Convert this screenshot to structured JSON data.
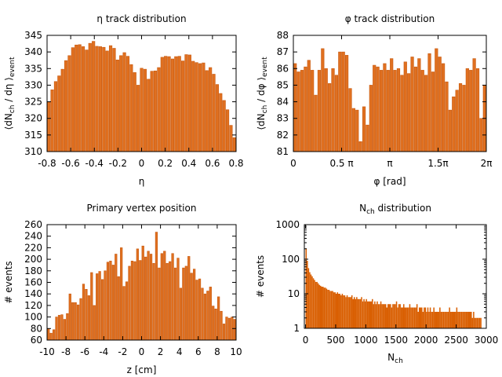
{
  "colors": {
    "bar": "#e07020",
    "bar_edge": "#c85a10",
    "bar_hist": "#d95f02",
    "axis": "#000000"
  },
  "chart_data": [
    {
      "id": "eta",
      "type": "bar",
      "title": "η track distribution",
      "xlabel": "η",
      "ylabel_main": "⟨dN",
      "ylabel_sub1": "ch",
      "ylabel_mid": " / dη ⟩",
      "ylabel_sub2": "event",
      "xlim": [
        -0.8,
        0.8
      ],
      "ylim": [
        310,
        345
      ],
      "xticks": [
        {
          "v": -0.8,
          "label": "-0.8"
        },
        {
          "v": -0.6,
          "label": "-0.6"
        },
        {
          "v": -0.4,
          "label": "-0.4"
        },
        {
          "v": -0.2,
          "label": "-0.2"
        },
        {
          "v": 0,
          "label": "0"
        },
        {
          "v": 0.2,
          "label": "0.2"
        },
        {
          "v": 0.4,
          "label": "0.4"
        },
        {
          "v": 0.6,
          "label": "0.6"
        },
        {
          "v": 0.8,
          "label": "0.8"
        }
      ],
      "yticks": [
        {
          "v": 310,
          "label": "310"
        },
        {
          "v": 315,
          "label": "315"
        },
        {
          "v": 320,
          "label": "320"
        },
        {
          "v": 325,
          "label": "325"
        },
        {
          "v": 330,
          "label": "330"
        },
        {
          "v": 335,
          "label": "335"
        },
        {
          "v": 340,
          "label": "340"
        },
        {
          "v": 345,
          "label": "345"
        }
      ],
      "values": [
        325.0,
        328.6,
        331.1,
        332.8,
        334.8,
        337.4,
        338.9,
        341.3,
        342.1,
        342.2,
        341.6,
        340.6,
        342.6,
        343.2,
        341.7,
        341.6,
        341.4,
        340.3,
        341.9,
        341.1,
        337.6,
        338.9,
        339.8,
        338.7,
        336.2,
        333.8,
        330.0,
        335.1,
        334.8,
        331.8,
        334.2,
        334.3,
        335.3,
        338.4,
        338.7,
        338.6,
        337.9,
        338.6,
        338.7,
        337.3,
        339.2,
        339.1,
        337.2,
        336.8,
        336.5,
        336.7,
        334.4,
        335.3,
        333.3,
        330.2,
        327.5,
        325.4,
        322.6,
        317.9,
        314.2
      ]
    },
    {
      "id": "phi",
      "type": "bar",
      "title": "φ track distribution",
      "xlabel": "φ [rad]",
      "ylabel_main": "⟨dN",
      "ylabel_sub1": "ch",
      "ylabel_mid": " / dφ ⟩",
      "ylabel_sub2": "event",
      "xlim": [
        0,
        6.283185
      ],
      "ylim": [
        81,
        88
      ],
      "xticks": [
        {
          "v": 0,
          "label": "0"
        },
        {
          "v": 1.570796,
          "label": "0.5 π"
        },
        {
          "v": 3.141593,
          "label": "π"
        },
        {
          "v": 4.712389,
          "label": "1.5π"
        },
        {
          "v": 6.283185,
          "label": "2π"
        }
      ],
      "yticks": [
        {
          "v": 81,
          "label": "81"
        },
        {
          "v": 82,
          "label": "82"
        },
        {
          "v": 83,
          "label": "83"
        },
        {
          "v": 84,
          "label": "84"
        },
        {
          "v": 85,
          "label": "85"
        },
        {
          "v": 86,
          "label": "86"
        },
        {
          "v": 87,
          "label": "87"
        },
        {
          "v": 88,
          "label": "88"
        }
      ],
      "values": [
        86.3,
        85.8,
        85.9,
        86.1,
        86.5,
        85.9,
        84.4,
        85.9,
        87.2,
        86.0,
        85.1,
        86.0,
        85.6,
        87.0,
        87.0,
        86.8,
        84.8,
        83.6,
        83.5,
        81.6,
        83.7,
        82.6,
        85.0,
        86.2,
        86.1,
        85.9,
        86.3,
        85.9,
        86.6,
        85.9,
        86.0,
        85.6,
        86.4,
        85.7,
        86.7,
        86.1,
        86.6,
        85.9,
        85.6,
        86.9,
        85.8,
        87.2,
        86.7,
        86.3,
        85.2,
        83.5,
        84.3,
        84.7,
        85.1,
        85.0,
        86.0,
        85.9,
        86.6,
        86.0,
        83.0,
        85.0
      ]
    },
    {
      "id": "vertex",
      "type": "bar",
      "title": "Primary vertex position",
      "xlabel": "z [cm]",
      "ylabel_main": "# events",
      "ylabel_sub1": "",
      "ylabel_mid": "",
      "ylabel_sub2": "",
      "xlim": [
        -10,
        10
      ],
      "ylim": [
        60,
        260
      ],
      "xticks": [
        {
          "v": -10,
          "label": "-10"
        },
        {
          "v": -8,
          "label": "-8"
        },
        {
          "v": -6,
          "label": "-6"
        },
        {
          "v": -4,
          "label": "-4"
        },
        {
          "v": -2,
          "label": "-2"
        },
        {
          "v": 0,
          "label": "0"
        },
        {
          "v": 2,
          "label": "2"
        },
        {
          "v": 4,
          "label": "4"
        },
        {
          "v": 6,
          "label": "6"
        },
        {
          "v": 8,
          "label": "8"
        },
        {
          "v": 10,
          "label": "10"
        }
      ],
      "yticks": [
        {
          "v": 60,
          "label": "60"
        },
        {
          "v": 80,
          "label": "80"
        },
        {
          "v": 100,
          "label": "100"
        },
        {
          "v": 120,
          "label": "120"
        },
        {
          "v": 140,
          "label": "140"
        },
        {
          "v": 160,
          "label": "160"
        },
        {
          "v": 180,
          "label": "180"
        },
        {
          "v": 200,
          "label": "200"
        },
        {
          "v": 220,
          "label": "220"
        },
        {
          "v": 240,
          "label": "240"
        },
        {
          "v": 260,
          "label": "260"
        }
      ],
      "values": [
        80,
        72,
        78,
        100,
        103,
        104,
        96,
        106,
        140,
        125,
        125,
        121,
        132,
        157,
        148,
        137,
        177,
        120,
        175,
        179,
        165,
        180,
        195,
        197,
        190,
        209,
        170,
        220,
        153,
        161,
        188,
        197,
        196,
        218,
        198,
        223,
        204,
        214,
        209,
        193,
        247,
        185,
        210,
        214,
        193,
        196,
        210,
        185,
        202,
        150,
        185,
        188,
        205,
        176,
        183,
        164,
        166,
        150,
        140,
        145,
        152,
        119,
        114,
        135,
        110,
        88,
        100,
        98,
        100,
        96
      ]
    },
    {
      "id": "nch",
      "type": "bar",
      "title_main": "N",
      "title_sub": "ch",
      "title_rest": " distribution",
      "xlabel_main": "N",
      "xlabel_sub": "ch",
      "ylabel_main": "# events",
      "xlim": [
        -20,
        3000
      ],
      "ylim_log": [
        1,
        1000
      ],
      "xticks": [
        {
          "v": 0,
          "label": "0"
        },
        {
          "v": 500,
          "label": "500"
        },
        {
          "v": 1000,
          "label": "1000"
        },
        {
          "v": 1500,
          "label": "1500"
        },
        {
          "v": 2000,
          "label": "2000"
        },
        {
          "v": 2500,
          "label": "2500"
        },
        {
          "v": 3000,
          "label": "3000"
        }
      ],
      "yticks": [
        {
          "v": 1,
          "label": "1"
        },
        {
          "v": 10,
          "label": "10"
        },
        {
          "v": 100,
          "label": "100"
        },
        {
          "v": 1000,
          "label": "1000"
        }
      ],
      "bin_width": 20,
      "x_start": 0,
      "values": [
        205,
        90,
        55,
        42,
        36,
        32,
        28,
        25,
        22,
        22,
        20,
        18,
        17,
        16,
        16,
        15,
        15,
        14,
        13,
        13,
        12,
        12,
        12,
        11,
        11,
        10,
        11,
        10,
        10,
        9,
        10,
        9,
        9,
        8,
        9,
        8,
        8,
        8,
        9,
        7,
        8,
        7,
        8,
        7,
        7,
        7,
        8,
        6,
        7,
        6,
        7,
        6,
        6,
        6,
        6,
        7,
        5,
        6,
        5,
        6,
        5,
        5,
        6,
        5,
        5,
        5,
        5,
        4,
        5,
        5,
        5,
        4,
        5,
        5,
        5,
        6,
        4,
        5,
        5,
        4,
        4,
        5,
        4,
        4,
        4,
        4,
        5,
        4,
        4,
        4,
        4,
        4,
        5,
        3,
        4,
        4,
        4,
        3,
        4,
        4,
        3,
        4,
        3,
        4,
        3,
        3,
        4,
        3,
        3,
        3,
        3,
        4,
        3,
        3,
        3,
        3,
        3,
        3,
        3,
        4,
        3,
        3,
        3,
        3,
        3,
        4,
        3,
        3,
        3,
        3,
        3,
        3,
        3,
        3,
        3,
        3,
        3,
        3,
        2,
        3,
        2,
        2,
        2,
        2,
        2,
        2
      ]
    }
  ]
}
